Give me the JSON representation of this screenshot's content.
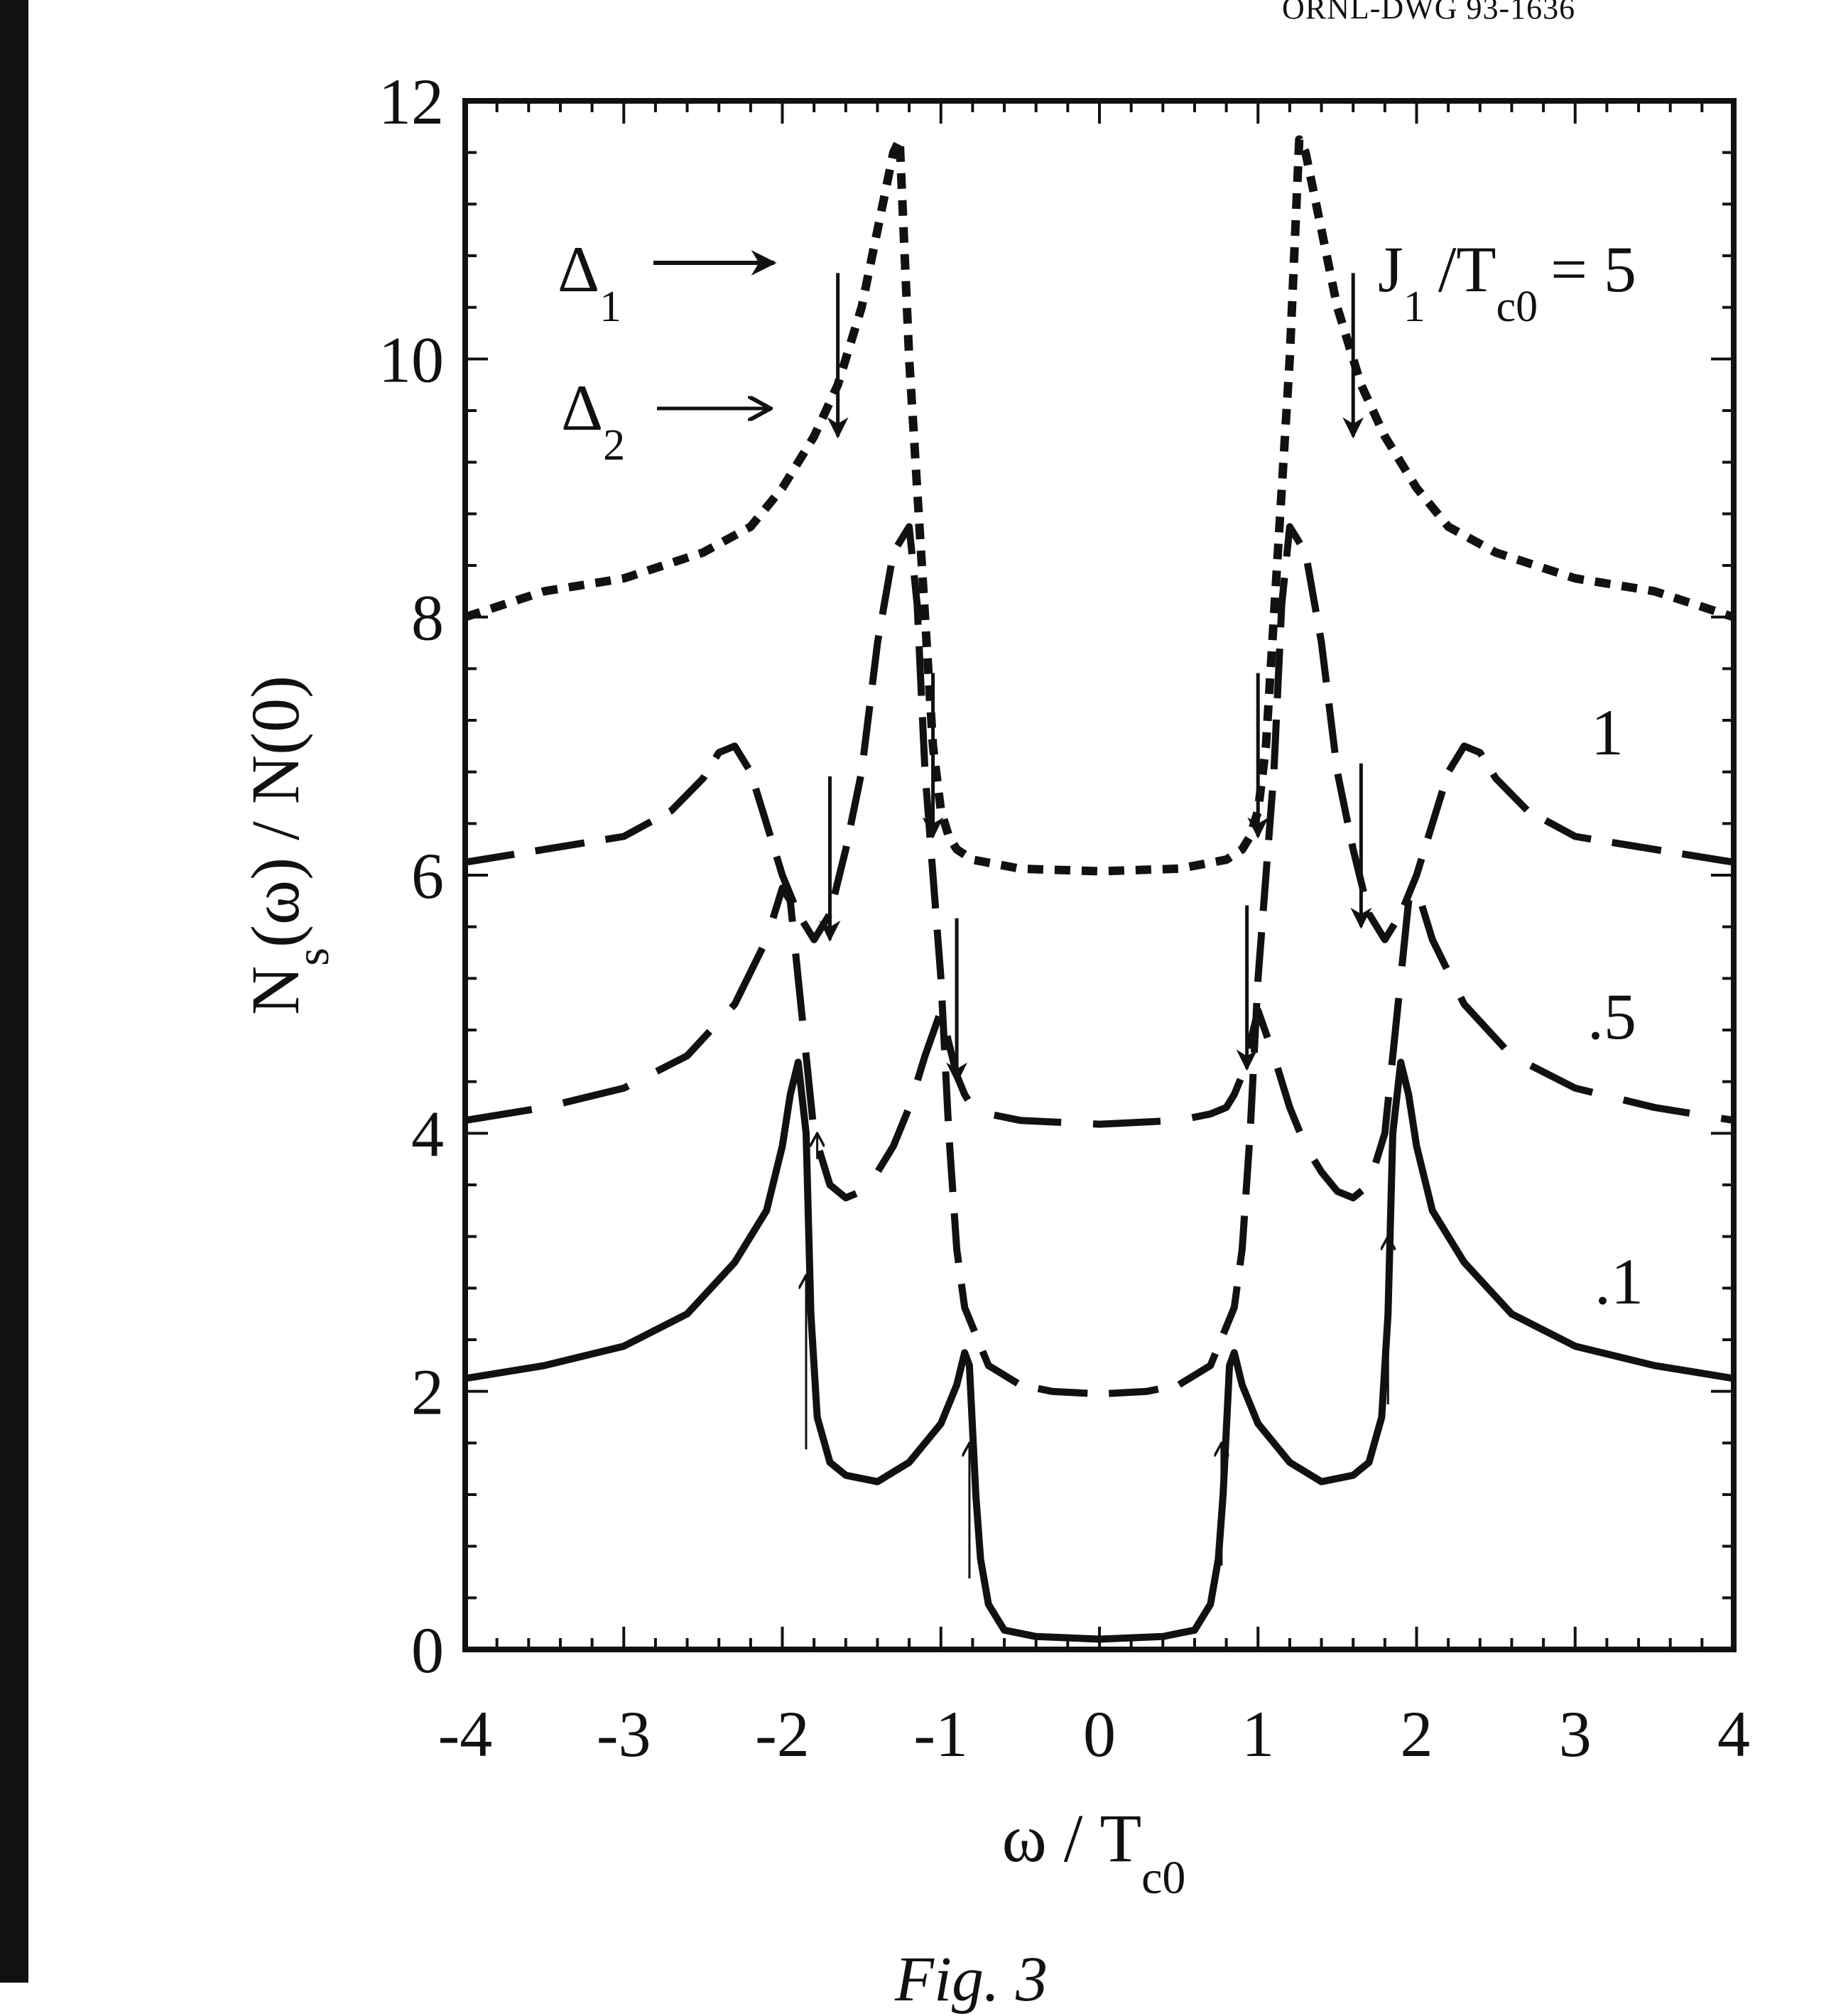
{
  "header": {
    "drawing_id": "ORNL-DWG 93-1636"
  },
  "figure": {
    "caption": "Fig. 3"
  },
  "chart_data": {
    "type": "line",
    "title": "",
    "xlabel_main": "ω / T",
    "xlabel_sub": "c0",
    "ylabel_main": "N",
    "ylabel_sub": "s",
    "ylabel_rest": "(ω) / N(0)",
    "xlim": [
      -4,
      4
    ],
    "ylim": [
      0,
      12
    ],
    "x_ticks": [
      -4,
      -3,
      -2,
      -1,
      0,
      1,
      2,
      3,
      4
    ],
    "x_tick_labels": [
      "-4",
      "-3",
      "-2",
      "-1",
      "0",
      "1",
      "2",
      "3",
      "4"
    ],
    "y_ticks": [
      0,
      2,
      4,
      6,
      8,
      10,
      12
    ],
    "y_tick_labels": [
      "0",
      "2",
      "4",
      "6",
      "8",
      "10",
      "12"
    ],
    "grid": false,
    "legend_key": {
      "delta1_main": "Δ",
      "delta1_sub": "1",
      "delta2_main": "Δ",
      "delta2_sub": "2"
    },
    "series_labels": {
      "s5_parts": [
        "J",
        "1",
        "/T",
        "c0",
        "= 5"
      ],
      "s1": "1",
      "s05": ".5",
      "s01": ".1"
    },
    "series": [
      {
        "id": "j5",
        "style": "dotted",
        "x": [
          -4,
          -3.5,
          -3,
          -2.5,
          -2.2,
          -2,
          -1.8,
          -1.65,
          -1.5,
          -1.4,
          -1.3,
          -1.26,
          -1.2,
          -1.1,
          -1.05,
          -1,
          -0.95,
          -0.9,
          -0.8,
          -0.5,
          0,
          0.5,
          0.8,
          0.9,
          0.95,
          1,
          1.05,
          1.1,
          1.2,
          1.26,
          1.3,
          1.4,
          1.5,
          1.65,
          1.8,
          2,
          2.2,
          2.5,
          3,
          3.5,
          4
        ],
        "y": [
          8.0,
          8.2,
          8.3,
          8.5,
          8.7,
          9.0,
          9.4,
          9.8,
          10.4,
          11.0,
          11.6,
          11.7,
          10.0,
          8.0,
          7.0,
          6.5,
          6.3,
          6.2,
          6.12,
          6.05,
          6.03,
          6.05,
          6.12,
          6.2,
          6.3,
          6.5,
          7.0,
          8.0,
          10.0,
          11.7,
          11.6,
          11.0,
          10.4,
          9.8,
          9.4,
          9.0,
          8.7,
          8.5,
          8.3,
          8.2,
          8.0
        ]
      },
      {
        "id": "j1",
        "style": "long-dash",
        "x": [
          -4,
          -3.5,
          -3,
          -2.7,
          -2.5,
          -2.4,
          -2.3,
          -2.2,
          -2.1,
          -2.0,
          -1.9,
          -1.8,
          -1.7,
          -1.6,
          -1.5,
          -1.4,
          -1.3,
          -1.2,
          -1.15,
          -1.1,
          -1.0,
          -0.95,
          -0.9,
          -0.85,
          -0.8,
          -0.7,
          -0.5,
          -0.3,
          0,
          0.3,
          0.5,
          0.7,
          0.8,
          0.85,
          0.9,
          0.95,
          1.0,
          1.1,
          1.15,
          1.2,
          1.3,
          1.4,
          1.5,
          1.6,
          1.7,
          1.8,
          1.9,
          2.0,
          2.1,
          2.2,
          2.3,
          2.4,
          2.5,
          2.7,
          3,
          3.5,
          4
        ],
        "y": [
          6.1,
          6.2,
          6.3,
          6.5,
          6.75,
          6.95,
          7.0,
          6.8,
          6.4,
          6.0,
          5.7,
          5.5,
          5.7,
          6.2,
          6.8,
          7.8,
          8.5,
          8.7,
          8.1,
          6.8,
          5.2,
          4.0,
          3.1,
          2.65,
          2.5,
          2.2,
          2.05,
          2.0,
          1.98,
          2.0,
          2.05,
          2.2,
          2.5,
          2.65,
          3.1,
          4.0,
          5.2,
          6.8,
          8.1,
          8.7,
          8.5,
          7.8,
          6.8,
          6.2,
          5.7,
          5.5,
          5.7,
          6.0,
          6.4,
          6.8,
          7.0,
          6.95,
          6.75,
          6.5,
          6.3,
          6.2,
          6.1
        ]
      },
      {
        "id": "j05",
        "style": "dashed",
        "x": [
          -4,
          -3.5,
          -3,
          -2.6,
          -2.3,
          -2.1,
          -2.0,
          -1.95,
          -1.9,
          -1.85,
          -1.8,
          -1.7,
          -1.6,
          -1.5,
          -1.4,
          -1.3,
          -1.2,
          -1.1,
          -1.0,
          -0.95,
          -0.9,
          -0.85,
          -0.8,
          -0.7,
          -0.5,
          0,
          0.5,
          0.7,
          0.8,
          0.85,
          0.9,
          0.95,
          1.0,
          1.1,
          1.2,
          1.3,
          1.4,
          1.5,
          1.6,
          1.7,
          1.8,
          1.85,
          1.9,
          1.95,
          2.0,
          2.1,
          2.3,
          2.6,
          3,
          3.5,
          4
        ],
        "y": [
          4.1,
          4.2,
          4.35,
          4.6,
          5.0,
          5.5,
          5.9,
          5.8,
          5.2,
          4.6,
          4.0,
          3.6,
          3.5,
          3.55,
          3.7,
          3.9,
          4.2,
          4.6,
          4.95,
          4.7,
          4.45,
          4.3,
          4.2,
          4.15,
          4.1,
          4.07,
          4.1,
          4.15,
          4.2,
          4.3,
          4.45,
          4.7,
          4.95,
          4.6,
          4.2,
          3.9,
          3.7,
          3.55,
          3.5,
          3.6,
          4.0,
          4.6,
          5.2,
          5.8,
          5.9,
          5.5,
          5.0,
          4.6,
          4.35,
          4.2,
          4.1
        ]
      },
      {
        "id": "j01",
        "style": "solid",
        "x": [
          -4,
          -3.5,
          -3,
          -2.6,
          -2.3,
          -2.1,
          -2.0,
          -1.95,
          -1.9,
          -1.85,
          -1.82,
          -1.78,
          -1.7,
          -1.6,
          -1.4,
          -1.2,
          -1.0,
          -0.9,
          -0.85,
          -0.82,
          -0.8,
          -0.78,
          -0.75,
          -0.7,
          -0.6,
          -0.4,
          0,
          0.4,
          0.6,
          0.7,
          0.75,
          0.78,
          0.8,
          0.82,
          0.85,
          0.9,
          1.0,
          1.2,
          1.4,
          1.6,
          1.7,
          1.78,
          1.82,
          1.85,
          1.9,
          1.95,
          2.0,
          2.1,
          2.3,
          2.6,
          3,
          3.5,
          4
        ],
        "y": [
          2.1,
          2.2,
          2.35,
          2.6,
          3.0,
          3.4,
          3.9,
          4.3,
          4.55,
          4.0,
          2.6,
          1.8,
          1.45,
          1.35,
          1.3,
          1.45,
          1.75,
          2.05,
          2.3,
          2.2,
          1.7,
          1.2,
          0.7,
          0.35,
          0.15,
          0.1,
          0.08,
          0.1,
          0.15,
          0.35,
          0.7,
          1.2,
          1.7,
          2.2,
          2.3,
          2.05,
          1.75,
          1.45,
          1.3,
          1.35,
          1.45,
          1.8,
          2.6,
          4.0,
          4.55,
          4.3,
          3.9,
          3.4,
          3.0,
          2.6,
          2.35,
          2.2,
          2.1
        ]
      }
    ],
    "arrows_delta1": [
      {
        "x": -1.65,
        "y_tip": 9.4,
        "series": "j5"
      },
      {
        "x": 1.6,
        "y_tip": 9.4,
        "series": "j5"
      },
      {
        "x": -1.7,
        "y_tip": 5.5,
        "series": "j1"
      },
      {
        "x": 1.65,
        "y_tip": 5.6,
        "series": "j1"
      },
      {
        "x": -1.05,
        "y_tip": 6.3,
        "series": "j5"
      },
      {
        "x": 1.0,
        "y_tip": 6.3,
        "series": "j5"
      },
      {
        "x": -0.9,
        "y_tip": 4.4,
        "series": "j05"
      },
      {
        "x": 0.93,
        "y_tip": 4.5,
        "series": "j05"
      }
    ],
    "arrows_delta2": [
      {
        "x": -1.85,
        "y_base": 1.55,
        "y_tip": 2.9,
        "series": "j01"
      },
      {
        "x": -1.78,
        "y_base": 3.8,
        "y_tip": 4.0,
        "series": "j01"
      },
      {
        "x": 1.82,
        "y_base": 1.9,
        "y_tip": 3.2,
        "series": "j01"
      },
      {
        "x": -0.82,
        "y_base": 0.55,
        "y_tip": 1.6,
        "series": "j01"
      },
      {
        "x": 0.77,
        "y_base": 0.65,
        "y_tip": 1.6,
        "series": "j01"
      }
    ]
  }
}
